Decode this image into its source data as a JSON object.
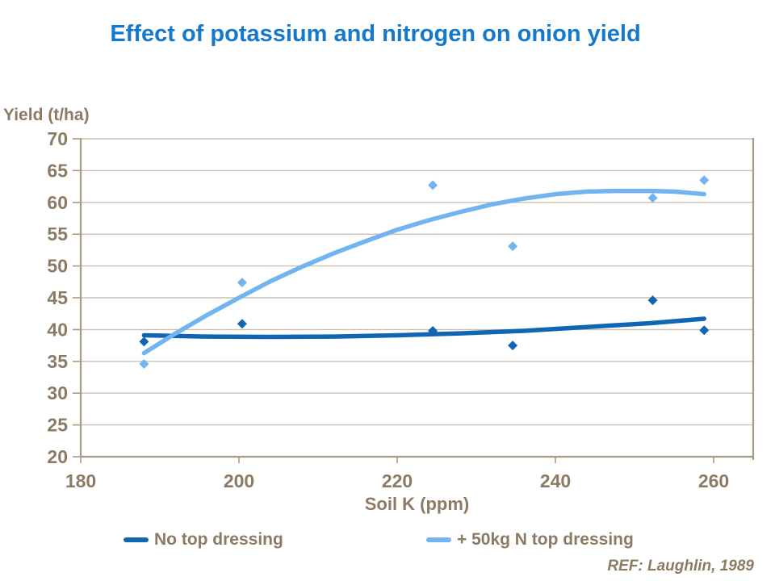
{
  "title": "Effect of potassium and nitrogen on onion yield",
  "ref_note": "REF: Laughlin, 1989",
  "colors": {
    "title": "#1478CB",
    "axis_text": "#8C7B64",
    "axis_line": "#A89B85",
    "gridline": "#C9C0B1",
    "series_no_top_dressing": "#1166B4",
    "series_50kg_n": "#71B4F0"
  },
  "chart_data": {
    "type": "scatter",
    "title": "Effect of potassium and nitrogen on onion yield",
    "xlabel": "Soil K (ppm)",
    "ylabel": "Yield (t/ha)",
    "xlim": [
      180,
      265
    ],
    "ylim": [
      20,
      70
    ],
    "x_ticks": [
      180,
      200,
      220,
      240,
      260
    ],
    "y_ticks": [
      20,
      25,
      30,
      35,
      40,
      45,
      50,
      55,
      60,
      65,
      70
    ],
    "grid": "horizontal",
    "legend_position": "bottom",
    "series": [
      {
        "name": "No top dressing",
        "color_key": "series_no_top_dressing",
        "marker": "diamond",
        "points": [
          [
            188,
            38.1
          ],
          [
            200.4,
            40.9
          ],
          [
            224.5,
            39.8
          ],
          [
            234.6,
            37.5
          ],
          [
            252.3,
            44.6
          ],
          [
            258.8,
            39.9
          ]
        ],
        "trend": [
          [
            188,
            39.1
          ],
          [
            196,
            38.9
          ],
          [
            204,
            38.85
          ],
          [
            212,
            38.9
          ],
          [
            220,
            39.1
          ],
          [
            228,
            39.4
          ],
          [
            236,
            39.8
          ],
          [
            244,
            40.4
          ],
          [
            252,
            41.0
          ],
          [
            258.8,
            41.7
          ]
        ]
      },
      {
        "name": "+ 50kg N top dressing",
        "color_key": "series_50kg_n",
        "marker": "diamond",
        "points": [
          [
            188,
            34.6
          ],
          [
            200.4,
            47.4
          ],
          [
            224.5,
            62.7
          ],
          [
            234.6,
            53.1
          ],
          [
            252.3,
            60.7
          ],
          [
            258.8,
            63.5
          ]
        ],
        "trend": [
          [
            188,
            36.3
          ],
          [
            192,
            39.4
          ],
          [
            196,
            42.3
          ],
          [
            200,
            45.0
          ],
          [
            204,
            47.6
          ],
          [
            208,
            49.9
          ],
          [
            212,
            52.0
          ],
          [
            216,
            53.9
          ],
          [
            220,
            55.7
          ],
          [
            224,
            57.2
          ],
          [
            228,
            58.5
          ],
          [
            232,
            59.7
          ],
          [
            236,
            60.6
          ],
          [
            240,
            61.3
          ],
          [
            244,
            61.7
          ],
          [
            248,
            61.8
          ],
          [
            252,
            61.8
          ],
          [
            255,
            61.7
          ],
          [
            258.8,
            61.3
          ]
        ]
      }
    ]
  }
}
